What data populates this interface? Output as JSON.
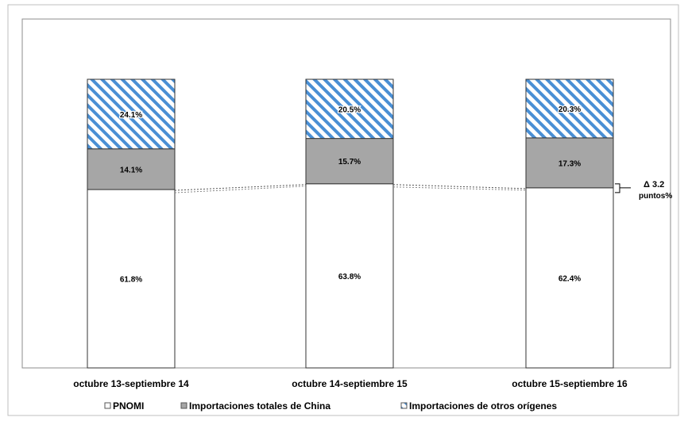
{
  "chart_data": {
    "type": "bar",
    "stacked": true,
    "percent": true,
    "categories": [
      "octubre 13-septiembre 14",
      "octubre 14-septiembre 15",
      "octubre 15-septiembre 16"
    ],
    "series": [
      {
        "name": "PNOMI",
        "values": [
          61.8,
          63.8,
          62.4
        ],
        "labels": [
          "61.8%",
          "63.8%",
          "62.4%"
        ],
        "pattern": "white"
      },
      {
        "name": "Importaciones totales de China",
        "values": [
          14.1,
          15.7,
          17.3
        ],
        "labels": [
          "14.1%",
          "15.7%",
          "17.3%"
        ],
        "pattern": "gray"
      },
      {
        "name": "Importaciones de otros orígenes",
        "values": [
          24.1,
          20.5,
          20.3
        ],
        "labels": [
          "24.1%",
          "20.5%",
          "20.3%"
        ],
        "pattern": "blue-hatch"
      }
    ],
    "annotation": {
      "line1": "Δ 3.2",
      "line2": "puntos%"
    },
    "legend_position": "bottom",
    "colors": {
      "white_fill": "#ffffff",
      "gray_fill": "#a6a6a6",
      "hatch_stroke": "#4a8fd4",
      "outline": "#333333"
    }
  }
}
